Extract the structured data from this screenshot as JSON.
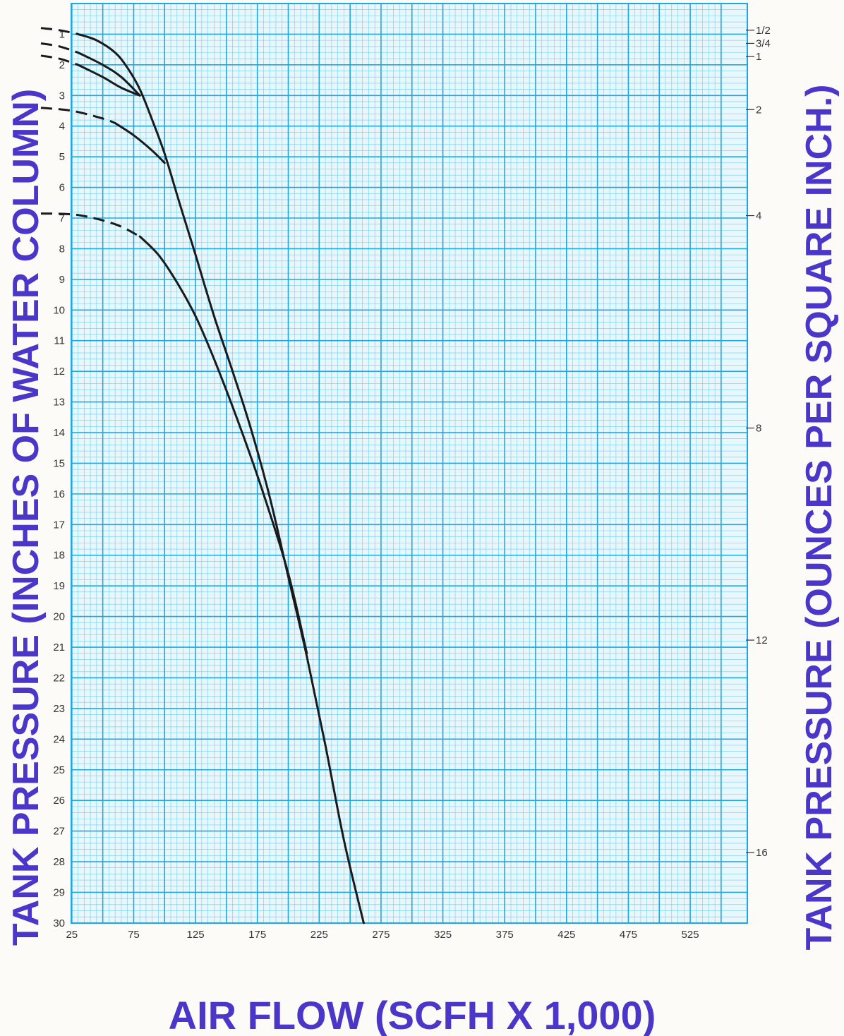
{
  "chart_data": {
    "type": "line",
    "title": "",
    "xlabel": "AIR FLOW (SCFH X 1,000)",
    "ylabel": "TANK PRESSURE (INCHES OF WATER COLUMN)",
    "y2label": "TANK PRESSURE (OUNCES PER SQUARE INCH.)",
    "xlim": [
      0,
      550
    ],
    "ylim": [
      0,
      30
    ],
    "y_inverted": true,
    "grid": true,
    "x_ticks": [
      25,
      75,
      125,
      175,
      225,
      275,
      325,
      375,
      425,
      475,
      525
    ],
    "x_tick_labels": [
      "25",
      "75",
      "125",
      "175",
      "225",
      "275",
      "325",
      "375",
      "425",
      "475",
      "525"
    ],
    "y_ticks": [
      1,
      2,
      3,
      4,
      5,
      6,
      7,
      8,
      9,
      10,
      11,
      12,
      13,
      14,
      15,
      16,
      17,
      18,
      19,
      20,
      21,
      22,
      23,
      24,
      25,
      26,
      27,
      28,
      29,
      30
    ],
    "y_tick_labels": [
      "1",
      "2",
      "3",
      "4",
      "5",
      "6",
      "7",
      "8",
      "9",
      "10",
      "11",
      "12",
      "13",
      "14",
      "15",
      "16",
      "17",
      "18",
      "19",
      "20",
      "21",
      "22",
      "23",
      "24",
      "25",
      "26",
      "27",
      "28",
      "29",
      "30"
    ],
    "y2_ticks": [
      {
        "label": "1/2",
        "inwc": 0.87
      },
      {
        "label": "3/4",
        "inwc": 1.3
      },
      {
        "label": "1",
        "inwc": 1.73
      },
      {
        "label": "2",
        "inwc": 3.46
      },
      {
        "label": "4",
        "inwc": 6.92
      },
      {
        "label": "8",
        "inwc": 13.85
      },
      {
        "label": "12",
        "inwc": 20.77
      },
      {
        "label": "16",
        "inwc": 27.7
      }
    ],
    "series": [
      {
        "dashed": [
          [
            0,
            0.8
          ],
          [
            15,
            0.87
          ],
          [
            30,
            1.0
          ]
        ],
        "solid": [
          [
            30,
            1.0
          ],
          [
            45,
            1.2
          ],
          [
            60,
            1.6
          ],
          [
            70,
            2.1
          ],
          [
            80,
            2.8
          ],
          [
            90,
            3.8
          ],
          [
            100,
            4.9
          ],
          [
            112,
            6.5
          ],
          [
            125,
            8.2
          ],
          [
            140,
            10.2
          ],
          [
            155,
            12.0
          ],
          [
            170,
            13.9
          ],
          [
            185,
            16.1
          ],
          [
            200,
            18.7
          ],
          [
            215,
            21.3
          ],
          [
            230,
            24.2
          ],
          [
            245,
            27.3
          ],
          [
            261,
            30.0
          ]
        ]
      },
      {
        "dashed": [
          [
            0,
            1.3
          ],
          [
            15,
            1.4
          ],
          [
            30,
            1.6
          ]
        ],
        "solid": [
          [
            30,
            1.6
          ],
          [
            50,
            2.0
          ],
          [
            65,
            2.4
          ],
          [
            80,
            3.0
          ]
        ]
      },
      {
        "dashed": [
          [
            0,
            1.7
          ],
          [
            15,
            1.8
          ],
          [
            30,
            2.0
          ]
        ],
        "solid": [
          [
            30,
            2.0
          ],
          [
            50,
            2.4
          ],
          [
            65,
            2.75
          ],
          [
            80,
            3.0
          ]
        ]
      },
      {
        "dashed": [
          [
            0,
            3.4
          ],
          [
            25,
            3.5
          ],
          [
            50,
            3.75
          ],
          [
            60,
            3.9
          ]
        ],
        "solid": [
          [
            60,
            3.9
          ],
          [
            75,
            4.3
          ],
          [
            90,
            4.8
          ],
          [
            100,
            5.2
          ]
        ]
      },
      {
        "dashed": [
          [
            0,
            6.85
          ],
          [
            30,
            6.9
          ],
          [
            60,
            7.2
          ],
          [
            80,
            7.6
          ]
        ],
        "solid": [
          [
            80,
            7.6
          ],
          [
            95,
            8.2
          ],
          [
            110,
            9.1
          ],
          [
            125,
            10.2
          ],
          [
            140,
            11.6
          ],
          [
            160,
            13.7
          ],
          [
            180,
            16.0
          ],
          [
            200,
            18.6
          ],
          [
            215,
            21.2
          ]
        ]
      }
    ],
    "colors": {
      "grid": "#1fa8e0",
      "grid_minor": "#6fcdef",
      "plot_background": "#e8f7fc",
      "curve": "#1a1a1a",
      "axis_title": "#4a36c9",
      "tick_text": "#333333"
    }
  }
}
